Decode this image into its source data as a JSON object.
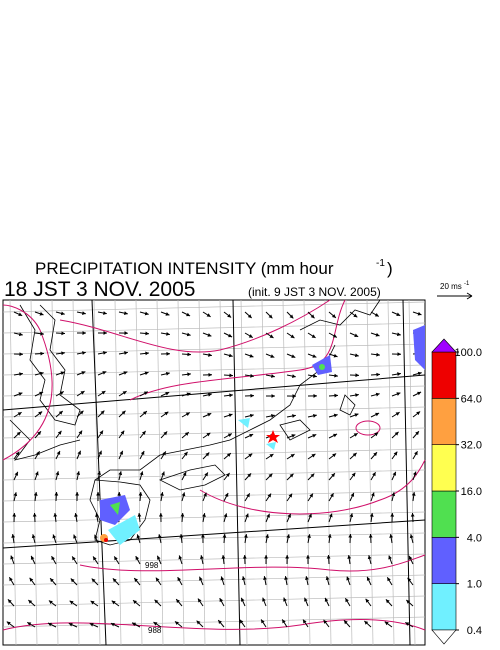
{
  "header": {
    "title": "PRECIPITATION INTENSITY (mm hour",
    "title_sup": "-1",
    "title_end": ")",
    "time": "18 JST 3 NOV. 2005",
    "init": "(init. 9 JST 3 NOV. 2005)"
  },
  "wind_scale": {
    "label": "20 ms",
    "label_sup": "-1"
  },
  "contour_labels": [
    "998",
    "988"
  ],
  "colorbar": {
    "ticks": [
      {
        "value": 0.4,
        "label": "0.4"
      },
      {
        "value": 1,
        "label": "1.0"
      },
      {
        "value": 4,
        "label": "4.0"
      },
      {
        "value": 16,
        "label": "16.0"
      },
      {
        "value": 32,
        "label": "32.0"
      },
      {
        "value": 64,
        "label": "64.0"
      },
      {
        "value": 100,
        "label": "100.0"
      }
    ],
    "colors": [
      "#70f0ff",
      "#6060ff",
      "#50e050",
      "#ffff50",
      "#ffa040",
      "#ee0000"
    ],
    "over_color": "#a000ff",
    "under_color": "#ffffff"
  }
}
